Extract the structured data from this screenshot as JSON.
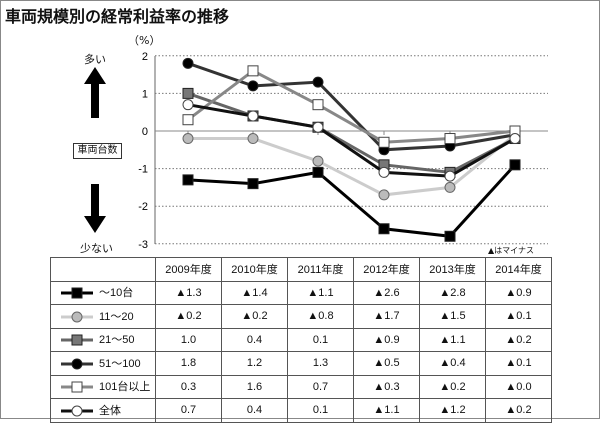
{
  "title": "車両規模別の経常利益率の推移",
  "labels": {
    "unit": "（%）",
    "more": "多い",
    "less": "少ない",
    "axis_box": "車両台数",
    "note": "▲はマイナス"
  },
  "table": {
    "headers": [
      "2009年度",
      "2010年度",
      "2011年度",
      "2012年度",
      "2013年度",
      "2014年度"
    ],
    "rows": [
      {
        "label": "～10台",
        "cells": [
          "▲1.3",
          "▲1.4",
          "▲1.1",
          "▲2.6",
          "▲2.8",
          "▲0.9"
        ]
      },
      {
        "label": "11～20",
        "cells": [
          "▲0.2",
          "▲0.2",
          "▲0.8",
          "▲1.7",
          "▲1.5",
          "▲0.1"
        ]
      },
      {
        "label": "21～50",
        "cells": [
          "1.0",
          "0.4",
          "0.1",
          "▲0.9",
          "▲1.1",
          "▲0.2"
        ]
      },
      {
        "label": "51～100",
        "cells": [
          "1.8",
          "1.2",
          "1.3",
          "▲0.5",
          "▲0.4",
          "▲0.1"
        ]
      },
      {
        "label": "101台以上",
        "cells": [
          "0.3",
          "1.6",
          "0.7",
          "▲0.3",
          "▲0.2",
          "▲0.0"
        ]
      },
      {
        "label": "全体",
        "cells": [
          "0.7",
          "0.4",
          "0.1",
          "▲1.1",
          "▲1.2",
          "▲0.2"
        ]
      }
    ]
  },
  "chart_data": {
    "type": "line",
    "title": "車両規模別の経常利益率の推移",
    "ylabel": "（%）",
    "x": [
      "2009年度",
      "2010年度",
      "2011年度",
      "2012年度",
      "2013年度",
      "2014年度"
    ],
    "ylim": [
      -3,
      2
    ],
    "yticks": [
      "2",
      "1",
      "0",
      "-1",
      "-2",
      "-3"
    ],
    "grid": true,
    "series": [
      {
        "name": "～10台",
        "values": [
          -1.3,
          -1.4,
          -1.1,
          -2.6,
          -2.8,
          -0.9
        ],
        "line": "#000000",
        "marker": "square",
        "fill": "#000000"
      },
      {
        "name": "11～20",
        "values": [
          -0.2,
          -0.2,
          -0.8,
          -1.7,
          -1.5,
          -0.1
        ],
        "line": "#cccccc",
        "marker": "circle",
        "fill": "#bbbbbb"
      },
      {
        "name": "21～50",
        "values": [
          1.0,
          0.4,
          0.1,
          -0.9,
          -1.1,
          -0.2
        ],
        "line": "#666666",
        "marker": "square",
        "fill": "#777777"
      },
      {
        "name": "51～100",
        "values": [
          1.8,
          1.2,
          1.3,
          -0.5,
          -0.4,
          -0.1
        ],
        "line": "#333333",
        "marker": "circle",
        "fill": "#000000"
      },
      {
        "name": "101台以上",
        "values": [
          0.3,
          1.6,
          0.7,
          -0.3,
          -0.2,
          0.0
        ],
        "line": "#888888",
        "marker": "square",
        "fill": "#ffffff"
      },
      {
        "name": "全体",
        "values": [
          0.7,
          0.4,
          0.1,
          -1.1,
          -1.2,
          -0.2
        ],
        "line": "#111111",
        "marker": "circle",
        "fill": "#ffffff"
      }
    ]
  }
}
